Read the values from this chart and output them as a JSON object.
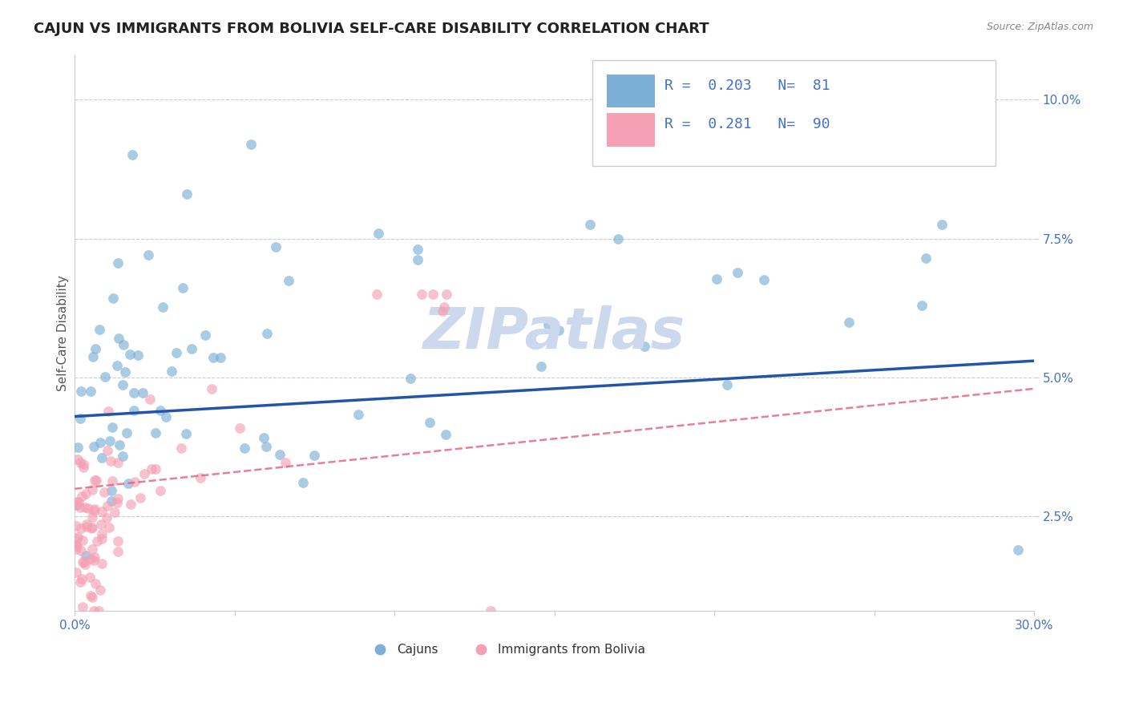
{
  "title": "CAJUN VS IMMIGRANTS FROM BOLIVIA SELF-CARE DISABILITY CORRELATION CHART",
  "source": "Source: ZipAtlas.com",
  "xlabel_cajun": "Cajuns",
  "xlabel_bolivia": "Immigrants from Bolivia",
  "ylabel": "Self-Care Disability",
  "cajun_R": 0.203,
  "cajun_N": 81,
  "bolivia_R": 0.281,
  "bolivia_N": 90,
  "xlim": [
    0.0,
    0.3
  ],
  "ylim": [
    0.008,
    0.108
  ],
  "yticks": [
    0.025,
    0.05,
    0.075,
    0.1
  ],
  "ytick_labels": [
    "2.5%",
    "5.0%",
    "7.5%",
    "10.0%"
  ],
  "xticks": [
    0.0,
    0.05,
    0.1,
    0.15,
    0.2,
    0.25,
    0.3
  ],
  "xtick_labels": [
    "0.0%",
    "",
    "",
    "",
    "",
    "",
    "30.0%"
  ],
  "cajun_color": "#7bafd4",
  "bolivia_color": "#f4a0b5",
  "trend_cajun_color": "#2255aa",
  "trend_bolivia_color": "#e06080",
  "background_color": "#ffffff",
  "grid_color": "#cccccc",
  "watermark_color": "#ccd8ee",
  "title_fontsize": 13,
  "label_fontsize": 11,
  "tick_fontsize": 11,
  "legend_fontsize": 13
}
